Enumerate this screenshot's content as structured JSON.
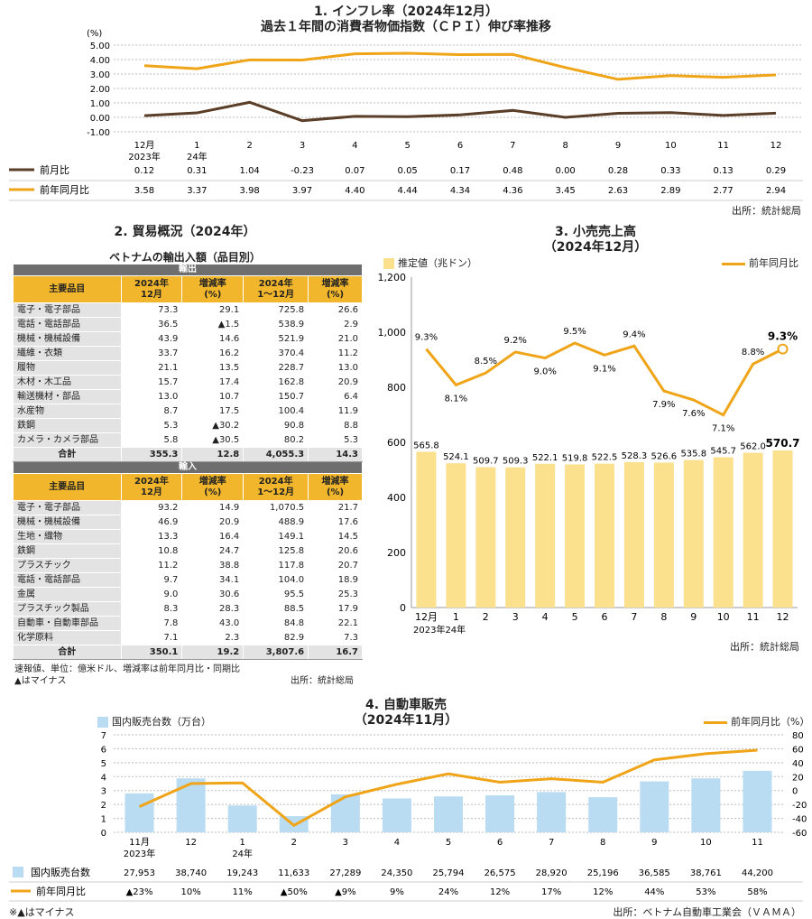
{
  "cpi": {
    "title1": "1. インフレ率（2024年12月）",
    "title2": "過去１年間の消費者物価指数（ＣＰＩ）伸び率推移",
    "unit": "(%)",
    "source": "出所：統計総局",
    "x_labels": [
      [
        "12月",
        "2023年"
      ],
      [
        "1",
        "24年"
      ],
      [
        "2"
      ],
      [
        "3"
      ],
      [
        "4"
      ],
      [
        "5"
      ],
      [
        "6"
      ],
      [
        "7"
      ],
      [
        "8"
      ],
      [
        "9"
      ],
      [
        "10"
      ],
      [
        "11"
      ],
      [
        "12"
      ]
    ]
  },
  "trade": {
    "title": "2. 貿易概況（2024年）",
    "subtitle": "ベトナムの輸出入額（品目別）",
    "export_label": "輸出",
    "import_label": "輸入",
    "headers": [
      "主要品目",
      "2024年\n12月",
      "増減率\n(%)",
      "2024年\n1～12月",
      "増減率\n(%)"
    ],
    "exports": [
      [
        "電子・電子部品",
        "73.3",
        "29.1",
        "725.8",
        "26.6"
      ],
      [
        "電話・電話部品",
        "36.5",
        "▲1.5",
        "538.9",
        "2.9"
      ],
      [
        "機械・機械設備",
        "43.9",
        "14.6",
        "521.9",
        "21.0"
      ],
      [
        "繊維・衣類",
        "33.7",
        "16.2",
        "370.4",
        "11.2"
      ],
      [
        "履物",
        "21.1",
        "13.5",
        "228.7",
        "13.0"
      ],
      [
        "木材・木工品",
        "15.7",
        "17.4",
        "162.8",
        "20.9"
      ],
      [
        "輸送機材・部品",
        "13.0",
        "10.7",
        "150.7",
        "6.4"
      ],
      [
        "水産物",
        "8.7",
        "17.5",
        "100.4",
        "11.9"
      ],
      [
        "鉄鋼",
        "5.3",
        "▲30.2",
        "90.8",
        "8.8"
      ],
      [
        "カメラ・カメラ部品",
        "5.8",
        "▲30.5",
        "80.2",
        "5.3"
      ]
    ],
    "export_total": [
      "合計",
      "355.3",
      "12.8",
      "4,055.3",
      "14.3"
    ],
    "imports": [
      [
        "電子・電子部品",
        "93.2",
        "14.9",
        "1,070.5",
        "21.7"
      ],
      [
        "機械・機械設備",
        "46.9",
        "20.9",
        "488.9",
        "17.6"
      ],
      [
        "生地・織物",
        "13.3",
        "16.4",
        "149.1",
        "14.5"
      ],
      [
        "鉄鋼",
        "10.8",
        "24.7",
        "125.8",
        "20.6"
      ],
      [
        "プラスチック",
        "11.2",
        "38.8",
        "117.8",
        "20.7"
      ],
      [
        "電話・電話部品",
        "9.7",
        "34.1",
        "104.0",
        "18.9"
      ],
      [
        "金属",
        "9.0",
        "30.6",
        "95.5",
        "25.3"
      ],
      [
        "プラスチック製品",
        "8.3",
        "28.3",
        "88.5",
        "17.9"
      ],
      [
        "自動車・自動車部品",
        "7.8",
        "43.0",
        "84.8",
        "22.1"
      ],
      [
        "化学原料",
        "7.1",
        "2.3",
        "82.9",
        "7.3"
      ]
    ],
    "import_total": [
      "合計",
      "350.1",
      "19.2",
      "3,807.6",
      "16.7"
    ],
    "note1": "速報値、単位：億米ドル、増減率は前年同月比・同期比",
    "note2": "▲はマイナス",
    "source": "出所：統計総局"
  },
  "retail": {
    "title1": "3. 小売売上高",
    "title2": "（2024年12月）",
    "legend_bar": "推定値（兆ドン）",
    "legend_line": "前年同月比",
    "x_labels": [
      "12月",
      "1",
      "2",
      "3",
      "4",
      "5",
      "6",
      "7",
      "8",
      "9",
      "10",
      "11",
      "12"
    ],
    "x_year": "2023年24年",
    "source": "出所：統計総局"
  },
  "auto": {
    "title1": "4. 自動車販売",
    "title2": "（2024年11月）",
    "legend_bar": "国内販売台数（万台）",
    "legend_line": "前年同月比（%）",
    "x_labels": [
      [
        "11月",
        "2023年"
      ],
      [
        "12"
      ],
      [
        "1",
        "24年"
      ],
      [
        "2"
      ],
      [
        "3"
      ],
      [
        "4"
      ],
      [
        "5"
      ],
      [
        "6"
      ],
      [
        "7"
      ],
      [
        "8"
      ],
      [
        "9"
      ],
      [
        "10"
      ],
      [
        "11"
      ]
    ],
    "row_bar_label": "国内販売台数",
    "row_line_label": "前年同月比",
    "note": "※▲はマイナス",
    "source": "出所：ベトナム自動車工業会（ＶＡＭＡ）"
  },
  "colors": {
    "dark_line": "#5a3e28",
    "orange": "#f0a418",
    "bar_yellow": "#fbe08d",
    "bar_blue": "#b9dcf2",
    "header_gold": "#f1b62b"
  },
  "chart_data": [
    {
      "type": "line",
      "title": "過去１年間の消費者物価指数（ＣＰＩ）伸び率推移",
      "ylabel": "(%)",
      "ylim": [
        -1.0,
        5.0
      ],
      "categories": [
        "12月 2023年",
        "1 24年",
        "2",
        "3",
        "4",
        "5",
        "6",
        "7",
        "8",
        "9",
        "10",
        "11",
        "12"
      ],
      "series": [
        {
          "name": "前月比",
          "values": [
            0.12,
            0.31,
            1.04,
            -0.23,
            0.07,
            0.05,
            0.17,
            0.48,
            0.0,
            0.28,
            0.33,
            0.13,
            0.29
          ],
          "labels": [
            "0.12",
            "0.31",
            "1.04",
            "-0.23",
            "0.07",
            "0.05",
            "0.17",
            "0.48",
            "0.00",
            "0.28",
            "0.33",
            "0.13",
            "0.29"
          ]
        },
        {
          "name": "前年同月比",
          "values": [
            3.58,
            3.37,
            3.98,
            3.97,
            4.4,
            4.44,
            4.34,
            4.36,
            3.45,
            2.63,
            2.89,
            2.77,
            2.94
          ],
          "labels": [
            "3.58",
            "3.37",
            "3.98",
            "3.97",
            "4.40",
            "4.44",
            "4.34",
            "4.36",
            "3.45",
            "2.63",
            "2.89",
            "2.77",
            "2.94"
          ]
        }
      ],
      "yticks": [
        "5.00",
        "4.00",
        "3.00",
        "2.00",
        "1.00",
        "0.00",
        "-1.00"
      ]
    },
    {
      "type": "bar",
      "title": "小売売上高（2024年12月）",
      "ylim": [
        0,
        1200
      ],
      "yticks": [
        "1,200",
        "1,000",
        "800",
        "600",
        "400",
        "200",
        "0"
      ],
      "categories": [
        "12月 2023年",
        "1 24年",
        "2",
        "3",
        "4",
        "5",
        "6",
        "7",
        "8",
        "9",
        "10",
        "11",
        "12"
      ],
      "series": [
        {
          "name": "推定値（兆ドン）",
          "values": [
            565.8,
            524.1,
            509.7,
            509.3,
            522.1,
            519.8,
            522.5,
            528.3,
            526.6,
            535.8,
            545.7,
            562.0,
            570.7
          ],
          "labels": [
            "565.8",
            "524.1",
            "509.7",
            "509.3",
            "522.1",
            "519.8",
            "522.5",
            "528.3",
            "526.6",
            "535.8",
            "545.7",
            "562.0",
            "570.7"
          ]
        },
        {
          "name": "前年同月比",
          "values": [
            9.3,
            8.1,
            8.5,
            9.2,
            9.0,
            9.5,
            9.1,
            9.4,
            7.9,
            7.6,
            7.1,
            8.8,
            9.3
          ],
          "labels": [
            "9.3%",
            "8.1%",
            "8.5%",
            "9.2%",
            "9.0%",
            "9.5%",
            "9.1%",
            "9.4%",
            "7.9%",
            "7.6%",
            "7.1%",
            "8.8%",
            "9.3%"
          ]
        }
      ]
    },
    {
      "type": "bar",
      "title": "自動車販売（2024年11月）",
      "ylim": [
        0,
        7
      ],
      "y2lim": [
        -60,
        80
      ],
      "yticks": [
        "7",
        "6",
        "5",
        "4",
        "3",
        "2",
        "1",
        "0"
      ],
      "y2ticks": [
        "80",
        "60",
        "40",
        "20",
        "0",
        "-20",
        "-40",
        "-60"
      ],
      "categories": [
        "11月 2023年",
        "12",
        "1 24年",
        "2",
        "3",
        "4",
        "5",
        "6",
        "7",
        "8",
        "9",
        "10",
        "11"
      ],
      "series": [
        {
          "name": "国内販売台数",
          "values": [
            27953,
            38740,
            19243,
            11633,
            27289,
            24350,
            25794,
            26575,
            28920,
            25196,
            36585,
            38761,
            44200
          ],
          "labels": [
            "27,953",
            "38,740",
            "19,243",
            "11,633",
            "27,289",
            "24,350",
            "25,794",
            "26,575",
            "28,920",
            "25,196",
            "36,585",
            "38,761",
            "44,200"
          ]
        },
        {
          "name": "前年同月比",
          "values": [
            -23,
            10,
            11,
            -50,
            -9,
            9,
            24,
            12,
            17,
            12,
            44,
            53,
            58
          ],
          "labels": [
            "▲23%",
            "10%",
            "11%",
            "▲50%",
            "▲9%",
            "9%",
            "24%",
            "12%",
            "17%",
            "12%",
            "44%",
            "53%",
            "58%"
          ]
        }
      ]
    }
  ]
}
